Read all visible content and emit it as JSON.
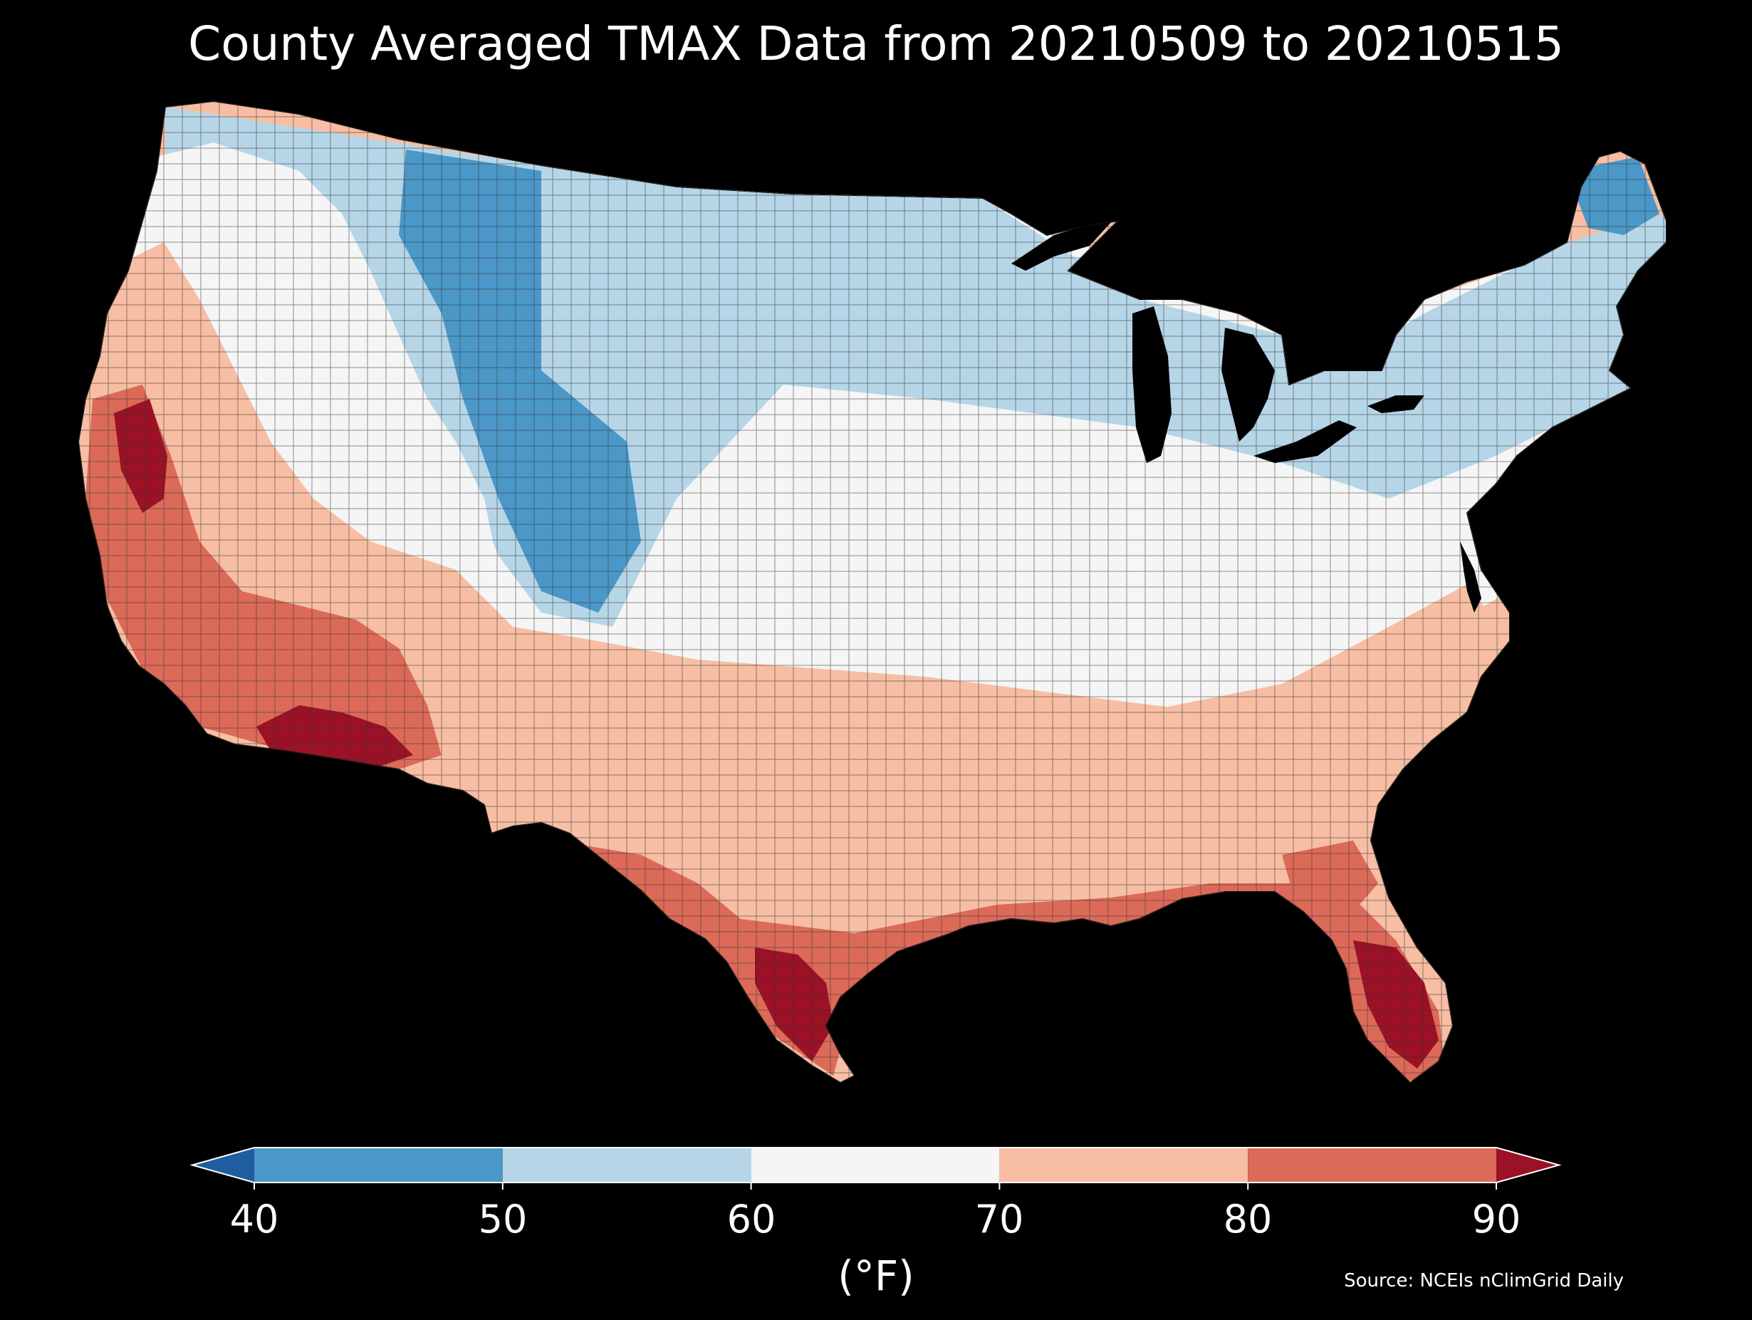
{
  "title": "County Averaged TMAX Data from 20210509 to 20210515",
  "colorbar": {
    "units": "(°F)",
    "ticks": [
      "40",
      "50",
      "60",
      "70",
      "80",
      "90"
    ],
    "bins": [
      {
        "range": "<40",
        "color": "#1f5da1"
      },
      {
        "range": "40-50",
        "color": "#4b97c8"
      },
      {
        "range": "50-60",
        "color": "#b6d6e8"
      },
      {
        "range": "60-70",
        "color": "#f5f5f5"
      },
      {
        "range": "70-80",
        "color": "#f7bea3"
      },
      {
        "range": "80-90",
        "color": "#dc6a58"
      },
      {
        "range": ">90",
        "color": "#9b1126"
      }
    ]
  },
  "source": "Source: NCEIs nClimGrid Daily",
  "map": {
    "region": "Contiguous United States",
    "background": "#000000",
    "county_border_color": "#333333"
  }
}
